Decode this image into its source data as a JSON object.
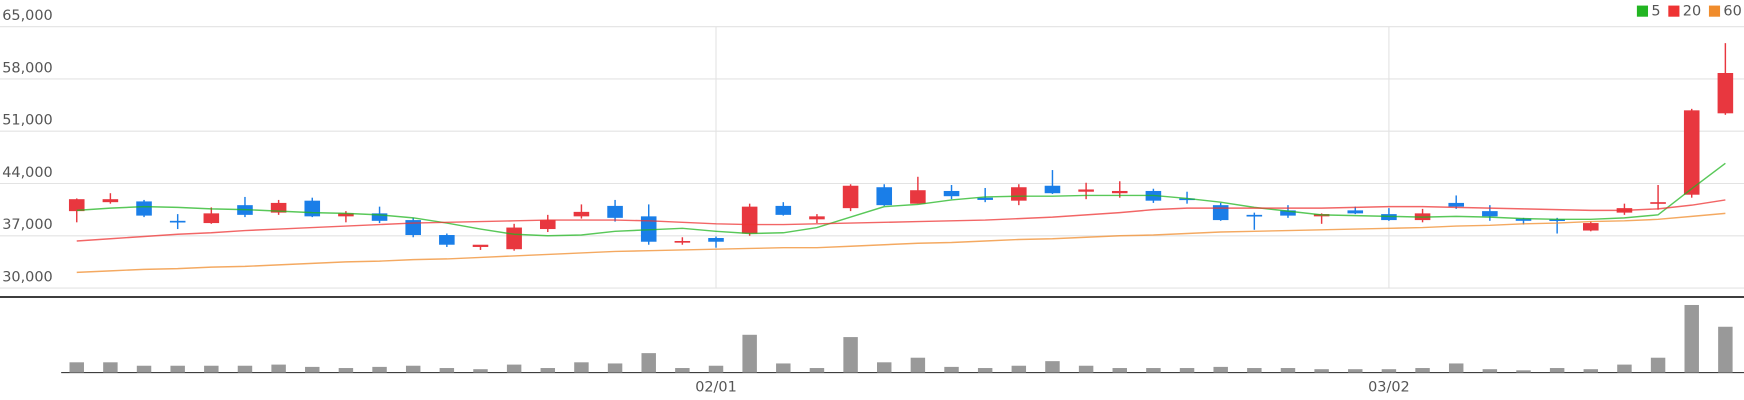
{
  "chart_data": {
    "type": "candlestick",
    "categories": [
      null,
      null,
      null,
      null,
      null,
      null,
      null,
      null,
      null,
      null,
      null,
      null,
      null,
      null,
      null,
      null,
      null,
      null,
      null,
      "02/01",
      null,
      null,
      null,
      null,
      null,
      null,
      null,
      null,
      null,
      null,
      null,
      null,
      null,
      null,
      null,
      null,
      null,
      null,
      null,
      "03/02",
      null,
      null,
      null,
      null,
      null,
      null,
      null,
      null,
      null,
      null
    ],
    "open": [
      40300,
      41500,
      41600,
      39000,
      38700,
      41100,
      40100,
      41700,
      39600,
      40000,
      39100,
      37100,
      35500,
      35200,
      37900,
      39600,
      41000,
      39600,
      36100,
      36700,
      37300,
      41000,
      39200,
      40700,
      43500,
      41300,
      43000,
      42100,
      41700,
      43700,
      42900,
      42700,
      43000,
      42000,
      41100,
      39800,
      40400,
      39600,
      40400,
      39900,
      39100,
      41400,
      40300,
      39300,
      39200,
      37700,
      40100,
      41300,
      42500,
      53400
    ],
    "high": [
      42000,
      42700,
      41800,
      39900,
      40800,
      42200,
      41800,
      42100,
      40300,
      40900,
      39400,
      37300,
      35700,
      38600,
      39800,
      41200,
      41800,
      41200,
      36800,
      36900,
      41300,
      41500,
      39900,
      43900,
      43900,
      44900,
      43800,
      43400,
      43900,
      45800,
      44100,
      44300,
      43300,
      42900,
      41400,
      40100,
      41100,
      40000,
      40900,
      40700,
      40600,
      42400,
      41100,
      39400,
      39400,
      38900,
      41300,
      43800,
      54000,
      62800
    ],
    "low": [
      38800,
      41300,
      39500,
      37900,
      38600,
      39500,
      39800,
      39500,
      38800,
      38700,
      36800,
      35500,
      35100,
      35000,
      37500,
      39300,
      38900,
      35800,
      35800,
      35400,
      37000,
      39700,
      38700,
      40300,
      41000,
      41300,
      41900,
      41500,
      41100,
      42600,
      41900,
      42100,
      41400,
      41300,
      39000,
      37800,
      39400,
      38600,
      39900,
      39000,
      38800,
      40600,
      39000,
      38500,
      37300,
      37600,
      39800,
      40500,
      42100,
      53200
    ],
    "close": [
      41900,
      41900,
      39700,
      38900,
      40000,
      39800,
      41400,
      39600,
      40000,
      39000,
      37100,
      35800,
      35800,
      38100,
      39100,
      40200,
      39400,
      36200,
      36300,
      36200,
      40900,
      39800,
      39600,
      43700,
      41100,
      43100,
      42300,
      41800,
      43500,
      42700,
      43200,
      43000,
      41700,
      41800,
      39100,
      39600,
      39700,
      39900,
      40000,
      39100,
      40000,
      40900,
      39600,
      39000,
      39000,
      38700,
      40700,
      41500,
      53800,
      58800
    ],
    "up_color": "#e8373f",
    "down_color": "#1a7ee8",
    "ylim": [
      28800,
      65000
    ],
    "yticks": [
      {
        "value": 30000,
        "label": "30,000"
      },
      {
        "value": 37000,
        "label": "37,000"
      },
      {
        "value": 44000,
        "label": "44,000"
      },
      {
        "value": 51000,
        "label": "51,000"
      },
      {
        "value": 58000,
        "label": "58,000"
      },
      {
        "value": 65000,
        "label": "65,000"
      }
    ],
    "grid": true,
    "legend": "top-right",
    "series": [
      {
        "name": "5",
        "color": "#22b522",
        "values": [
          40400,
          40700,
          40900,
          40800,
          40600,
          40500,
          40300,
          40100,
          40000,
          39800,
          39400,
          38700,
          37900,
          37200,
          37000,
          37100,
          37600,
          37800,
          38000,
          37600,
          37300,
          37400,
          38100,
          39500,
          40900,
          41200,
          41800,
          42200,
          42300,
          42300,
          42400,
          42400,
          42400,
          42000,
          41500,
          40800,
          40300,
          39800,
          39700,
          39600,
          39500,
          39600,
          39500,
          39300,
          39200,
          39200,
          39400,
          39800,
          43300,
          46700
        ]
      },
      {
        "name": "20",
        "color": "#ee3333",
        "values": [
          36300,
          36600,
          36900,
          37200,
          37400,
          37700,
          37900,
          38100,
          38300,
          38500,
          38700,
          38800,
          38900,
          39000,
          39100,
          39100,
          39100,
          39000,
          38800,
          38600,
          38500,
          38500,
          38600,
          38700,
          38800,
          38900,
          39000,
          39100,
          39300,
          39500,
          39800,
          40100,
          40500,
          40700,
          40700,
          40700,
          40700,
          40700,
          40800,
          40900,
          40900,
          40800,
          40700,
          40600,
          40500,
          40400,
          40400,
          40600,
          41100,
          41800
        ]
      },
      {
        "name": "60",
        "color": "#f08c2c",
        "values": [
          32100,
          32300,
          32500,
          32600,
          32800,
          32900,
          33100,
          33300,
          33500,
          33600,
          33800,
          33900,
          34100,
          34300,
          34500,
          34700,
          34900,
          35000,
          35100,
          35200,
          35300,
          35400,
          35400,
          35600,
          35800,
          36000,
          36100,
          36300,
          36500,
          36600,
          36800,
          37000,
          37100,
          37300,
          37500,
          37600,
          37700,
          37800,
          37900,
          38000,
          38100,
          38300,
          38400,
          38600,
          38700,
          38900,
          39000,
          39200,
          39600,
          40000
        ]
      }
    ],
    "volume": {
      "color": "#999999",
      "ylim": [
        0,
        65
      ],
      "values": [
        9,
        9,
        6,
        6,
        6,
        6,
        7,
        5,
        4,
        5,
        6,
        4,
        3,
        7,
        4,
        9,
        8,
        17,
        4,
        6,
        33,
        8,
        4,
        31,
        9,
        13,
        5,
        4,
        6,
        10,
        6,
        4,
        4,
        4,
        5,
        4,
        4,
        3,
        3,
        3,
        4,
        8,
        3,
        2,
        4,
        3,
        7,
        13,
        59,
        40
      ]
    }
  }
}
